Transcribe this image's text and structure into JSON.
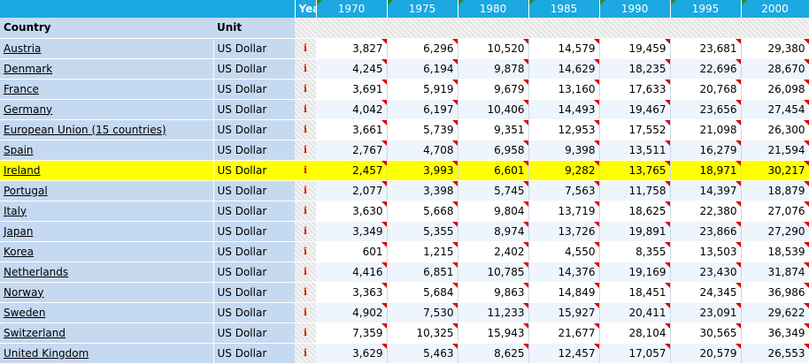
{
  "header": {
    "year_label": "Year",
    "country_label": "Country",
    "unit_label": "Unit",
    "years": [
      "1970",
      "1975",
      "1980",
      "1985",
      "1990",
      "1995",
      "2000"
    ]
  },
  "info_glyph": "i",
  "colors": {
    "header_bg": "#1ca8e0",
    "label_bg": "#c5d9f1",
    "highlight": "#ffff00",
    "flag_red": "#dd0000",
    "flag_green": "#2b8a2b"
  },
  "rows": [
    {
      "country": "Austria",
      "unit": "US Dollar",
      "values": [
        "3,827",
        "6,296",
        "10,520",
        "14,579",
        "19,459",
        "23,681",
        "29,380"
      ]
    },
    {
      "country": "Denmark",
      "unit": "US Dollar",
      "values": [
        "4,245",
        "6,194",
        "9,878",
        "14,629",
        "18,235",
        "22,696",
        "28,670"
      ]
    },
    {
      "country": "France",
      "unit": "US Dollar",
      "values": [
        "3,691",
        "5,919",
        "9,679",
        "13,160",
        "17,633",
        "20,768",
        "26,098"
      ]
    },
    {
      "country": "Germany",
      "unit": "US Dollar",
      "values": [
        "4,042",
        "6,197",
        "10,406",
        "14,493",
        "19,467",
        "23,656",
        "27,454"
      ]
    },
    {
      "country": "European Union (15 countries)",
      "unit": "US Dollar",
      "values": [
        "3,661",
        "5,739",
        "9,351",
        "12,953",
        "17,552",
        "21,098",
        "26,300"
      ]
    },
    {
      "country": "Spain",
      "unit": "US Dollar",
      "values": [
        "2,767",
        "4,708",
        "6,958",
        "9,398",
        "13,511",
        "16,279",
        "21,594"
      ]
    },
    {
      "country": "Ireland",
      "unit": "US Dollar",
      "values": [
        "2,457",
        "3,993",
        "6,601",
        "9,282",
        "13,765",
        "18,971",
        "30,217"
      ],
      "highlighted": true
    },
    {
      "country": "Portugal",
      "unit": "US Dollar",
      "values": [
        "2,077",
        "3,398",
        "5,745",
        "7,563",
        "11,758",
        "14,397",
        "18,879"
      ]
    },
    {
      "country": "Italy",
      "unit": "US Dollar",
      "values": [
        "3,630",
        "5,668",
        "9,804",
        "13,719",
        "18,625",
        "22,380",
        "27,076"
      ]
    },
    {
      "country": "Japan",
      "unit": "US Dollar",
      "values": [
        "3,349",
        "5,355",
        "8,974",
        "13,726",
        "19,891",
        "23,866",
        "27,290"
      ]
    },
    {
      "country": "Korea",
      "unit": "US Dollar",
      "values": [
        "601",
        "1,215",
        "2,402",
        "4,550",
        "8,355",
        "13,503",
        "18,539"
      ]
    },
    {
      "country": "Netherlands",
      "unit": "US Dollar",
      "values": [
        "4,416",
        "6,851",
        "10,785",
        "14,376",
        "19,169",
        "23,430",
        "31,874"
      ]
    },
    {
      "country": "Norway",
      "unit": "US Dollar",
      "values": [
        "3,363",
        "5,684",
        "9,863",
        "14,849",
        "18,451",
        "24,345",
        "36,986"
      ]
    },
    {
      "country": "Sweden",
      "unit": "US Dollar",
      "values": [
        "4,902",
        "7,530",
        "11,233",
        "15,927",
        "20,411",
        "23,091",
        "29,622"
      ]
    },
    {
      "country": "Switzerland",
      "unit": "US Dollar",
      "values": [
        "7,359",
        "10,325",
        "15,943",
        "21,677",
        "28,104",
        "30,565",
        "36,349"
      ]
    },
    {
      "country": "United Kingdom",
      "unit": "US Dollar",
      "values": [
        "3,629",
        "5,463",
        "8,625",
        "12,457",
        "17,057",
        "20,579",
        "26,553"
      ]
    }
  ]
}
